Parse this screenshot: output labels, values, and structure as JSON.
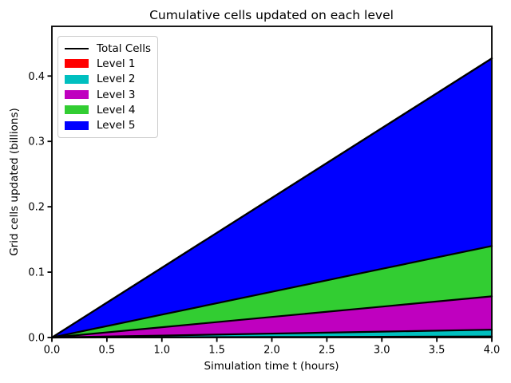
{
  "chart_data": {
    "type": "area",
    "stacked": true,
    "title": "Cumulative cells updated on each level",
    "xlabel": "Simulation time t (hours)",
    "ylabel": "Grid cells updated (billions)",
    "x": [
      0,
      1,
      2,
      3,
      4
    ],
    "series": [
      {
        "name": "Level 1",
        "color": "#ff0000",
        "values": [
          0,
          0.000375,
          0.00075,
          0.001125,
          0.0015
        ]
      },
      {
        "name": "Level 2",
        "color": "#00bfbf",
        "values": [
          0,
          0.002625,
          0.00525,
          0.007875,
          0.0105
        ]
      },
      {
        "name": "Level 3",
        "color": "#bf00bf",
        "values": [
          0,
          0.01275,
          0.0255,
          0.03825,
          0.051
        ]
      },
      {
        "name": "Level 4",
        "color": "#32cd32",
        "values": [
          0,
          0.01925,
          0.0385,
          0.05775,
          0.077
        ]
      },
      {
        "name": "Level 5",
        "color": "#0000ff",
        "values": [
          0,
          0.07175,
          0.1435,
          0.21525,
          0.287
        ]
      }
    ],
    "total_line": {
      "name": "Total Cells",
      "color": "#000000",
      "values": [
        0,
        0.10675,
        0.2135,
        0.32025,
        0.427
      ]
    },
    "xlim": [
      0,
      4
    ],
    "ylim": [
      0,
      0.476
    ],
    "xticks": {
      "values": [
        0,
        0.5,
        1,
        1.5,
        2,
        2.5,
        3,
        3.5,
        4
      ],
      "labels": [
        "0.0",
        "0.5",
        "1.0",
        "1.5",
        "2.0",
        "2.5",
        "3.0",
        "3.5",
        "4.0"
      ]
    },
    "yticks": {
      "values": [
        0,
        0.1,
        0.2,
        0.3,
        0.4
      ],
      "labels": [
        "0.0",
        "0.1",
        "0.2",
        "0.3",
        "0.4"
      ]
    },
    "grid": false,
    "legend": {
      "position": "upper left",
      "entries": [
        {
          "label": "Total Cells",
          "type": "line",
          "color": "#000000"
        },
        {
          "label": "Level 1",
          "type": "patch",
          "color": "#ff0000"
        },
        {
          "label": "Level 2",
          "type": "patch",
          "color": "#00bfbf"
        },
        {
          "label": "Level 3",
          "type": "patch",
          "color": "#bf00bf"
        },
        {
          "label": "Level 4",
          "type": "patch",
          "color": "#32cd32"
        },
        {
          "label": "Level 5",
          "type": "patch",
          "color": "#0000ff"
        }
      ]
    },
    "edge_color": "#000000"
  }
}
